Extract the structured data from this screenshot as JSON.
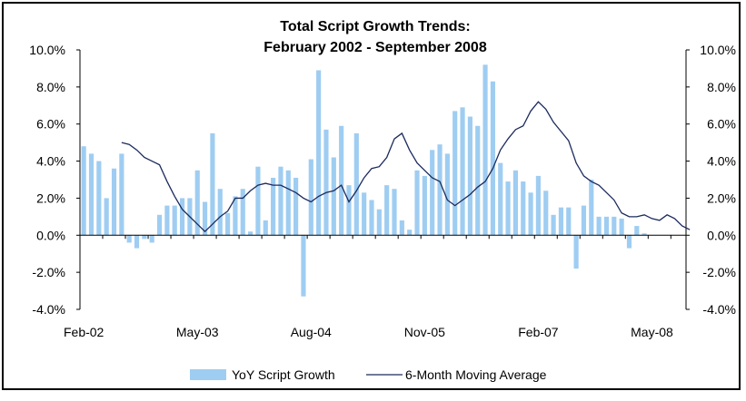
{
  "chart_data": {
    "type": "bar+line",
    "title": "Total Script Growth Trends:",
    "subtitle": "February 2002 - September 2008",
    "x_tick_labels": [
      "Feb-02",
      "May-03",
      "Aug-04",
      "Nov-05",
      "Feb-07",
      "May-08"
    ],
    "y_tick_labels": [
      "-4.0%",
      "-2.0%",
      "0.0%",
      "2.0%",
      "4.0%",
      "6.0%",
      "8.0%",
      "10.0%"
    ],
    "y_tick_values": [
      -4,
      -2,
      0,
      2,
      4,
      6,
      8,
      10
    ],
    "ylim": [
      -4,
      10
    ],
    "legend_position": "bottom-center",
    "colors": {
      "bars": "#9fcdf2",
      "line": "#1b2a5c",
      "axis": "#000000"
    },
    "series": [
      {
        "name": "YoY Script Growth",
        "type": "bar",
        "values": [
          4.8,
          4.4,
          4.0,
          2.0,
          3.6,
          4.4,
          -0.4,
          -0.7,
          -0.2,
          -0.4,
          1.1,
          1.6,
          1.6,
          2.0,
          2.0,
          3.5,
          1.8,
          5.5,
          2.5,
          1.2,
          2.1,
          2.5,
          0.2,
          3.7,
          0.8,
          3.1,
          3.7,
          3.5,
          3.1,
          -3.3,
          4.1,
          8.9,
          5.7,
          4.2,
          5.9,
          2.7,
          5.5,
          2.3,
          1.9,
          1.4,
          2.7,
          2.5,
          0.8,
          0.3,
          3.5,
          3.2,
          4.6,
          4.9,
          4.4,
          6.7,
          6.9,
          6.4,
          5.9,
          9.2,
          8.3,
          3.9,
          2.9,
          3.5,
          2.9,
          2.3,
          3.2,
          2.4,
          1.1,
          1.5,
          1.5,
          -1.8,
          1.6,
          3.0,
          1.0,
          1.0,
          1.0,
          0.9,
          -0.7,
          0.5,
          0.1,
          0.0,
          0.0,
          0.0,
          0.0,
          0.0
        ]
      },
      {
        "name": "6-Month Moving Average",
        "type": "line",
        "start_index": 5,
        "values": [
          5.0,
          4.9,
          4.6,
          4.2,
          4.0,
          3.8,
          2.9,
          2.1,
          1.4,
          1.0,
          0.6,
          0.2,
          0.6,
          1.0,
          1.3,
          2.0,
          2.0,
          2.4,
          2.7,
          2.8,
          2.7,
          2.7,
          2.5,
          2.3,
          2.0,
          1.8,
          2.1,
          2.3,
          2.4,
          2.7,
          1.8,
          2.4,
          3.1,
          3.6,
          3.7,
          4.2,
          5.2,
          5.5,
          4.6,
          3.9,
          3.5,
          3.1,
          2.9,
          1.9,
          1.6,
          1.9,
          2.2,
          2.6,
          2.9,
          3.6,
          4.6,
          5.2,
          5.7,
          5.9,
          6.7,
          7.2,
          6.8,
          6.1,
          5.6,
          5.1,
          3.9,
          3.2,
          2.9,
          2.7,
          2.3,
          1.9,
          1.2,
          1.0,
          1.0,
          1.1,
          0.9,
          0.8,
          1.1,
          0.9,
          0.5,
          0.3
        ]
      }
    ]
  }
}
